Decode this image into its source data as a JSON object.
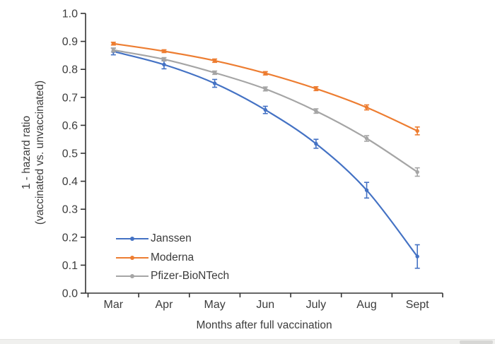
{
  "chart_data": {
    "type": "line",
    "title": "",
    "categories": [
      "Mar",
      "Apr",
      "May",
      "Jun",
      "July",
      "Aug",
      "Sept"
    ],
    "series": [
      {
        "name": "Janssen",
        "color": "#4472C4",
        "values": [
          0.864,
          0.817,
          0.75,
          0.655,
          0.534,
          0.368,
          0.131
        ],
        "error": [
          0.012,
          0.015,
          0.014,
          0.013,
          0.016,
          0.028,
          0.042
        ]
      },
      {
        "name": "Moderna",
        "color": "#ED7D31",
        "values": [
          0.892,
          0.865,
          0.831,
          0.786,
          0.731,
          0.664,
          0.58
        ],
        "error": [
          0.005,
          0.005,
          0.006,
          0.006,
          0.007,
          0.009,
          0.014
        ]
      },
      {
        "name": "Pfizer-BioNTech",
        "color": "#A5A5A5",
        "values": [
          0.869,
          0.836,
          0.788,
          0.73,
          0.651,
          0.553,
          0.433
        ],
        "error": [
          0.007,
          0.006,
          0.006,
          0.007,
          0.008,
          0.01,
          0.015
        ]
      }
    ],
    "ylabel_line1": "1 - hazard ratio",
    "ylabel_line2": "(vaccinated vs. unvaccinated)",
    "xlabel": "Months after full vaccination",
    "ylim": [
      0.0,
      1.0
    ],
    "ytick_step": 0.1,
    "ytick_decimals": 1,
    "grid": false,
    "error_bars": true,
    "legend_position": "inside-bottom-left",
    "axis_color": "#333333",
    "text_color": "#3c3c3c"
  }
}
